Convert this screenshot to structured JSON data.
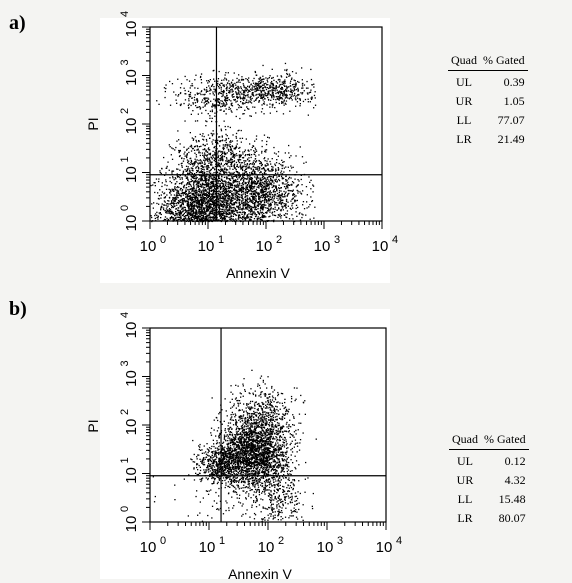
{
  "chart_data": [
    {
      "panel": "a)",
      "type": "scatter",
      "xlabel": "Annexin V",
      "ylabel": "PI",
      "xscale": "log",
      "yscale": "log",
      "xlim": [
        1,
        10000
      ],
      "ylim": [
        1,
        10000
      ],
      "x_ticks": [
        "10",
        "10",
        "10",
        "10",
        "10"
      ],
      "x_tick_exponents": [
        "0",
        "1",
        "2",
        "3",
        "4"
      ],
      "y_ticks": [
        "10",
        "10",
        "10",
        "10",
        "10"
      ],
      "y_tick_exponents": [
        "0",
        "1",
        "2",
        "3",
        "4"
      ],
      "quadrant_gate": {
        "x": 14,
        "y": 9
      },
      "table_headers": [
        "Quad",
        "% Gated"
      ],
      "quadrants": [
        {
          "quad": "UL",
          "gated": "0.39"
        },
        {
          "quad": "UR",
          "gated": "1.05"
        },
        {
          "quad": "LL",
          "gated": "77.07"
        },
        {
          "quad": "LR",
          "gated": "21.49"
        }
      ]
    },
    {
      "panel": "b)",
      "type": "scatter",
      "xlabel": "Annexin V",
      "ylabel": "PI",
      "xscale": "log",
      "yscale": "log",
      "xlim": [
        1,
        10000
      ],
      "ylim": [
        1,
        10000
      ],
      "x_ticks": [
        "10",
        "10",
        "10",
        "10",
        "10"
      ],
      "x_tick_exponents": [
        "0",
        "1",
        "2",
        "3",
        "4"
      ],
      "y_ticks": [
        "10",
        "10",
        "10",
        "10",
        "10"
      ],
      "y_tick_exponents": [
        "0",
        "1",
        "2",
        "3",
        "4"
      ],
      "quadrant_gate": {
        "x": 16,
        "y": 9
      },
      "table_headers": [
        "Quad",
        "% Gated"
      ],
      "quadrants": [
        {
          "quad": "UL",
          "gated": "0.12"
        },
        {
          "quad": "UR",
          "gated": "4.32"
        },
        {
          "quad": "LL",
          "gated": "15.48"
        },
        {
          "quad": "LR",
          "gated": "80.07"
        }
      ]
    }
  ]
}
